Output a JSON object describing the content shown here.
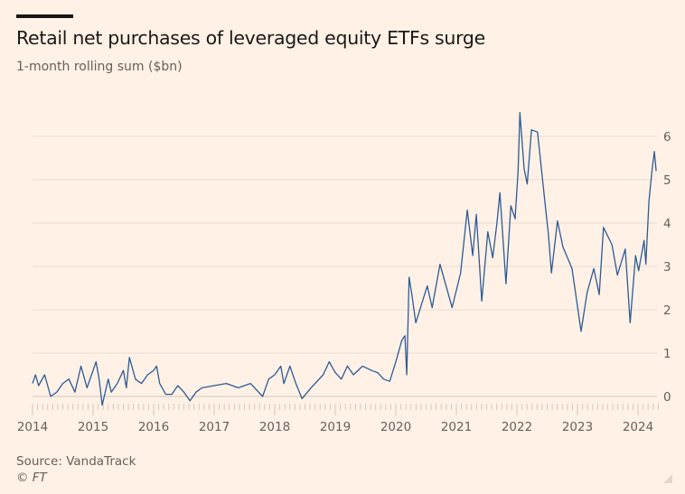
{
  "header": {
    "title": "Retail net purchases of leveraged equity ETFs surge",
    "subtitle": "1-month rolling sum ($bn)"
  },
  "footer": {
    "source": "Source: VandaTrack",
    "copyright": "© FT"
  },
  "colors": {
    "background": "#fff1e5",
    "line": "#2e5b97",
    "grid": "#e8dbd0",
    "text": "#66605c"
  },
  "chart_data": {
    "type": "line",
    "title": "Retail net purchases of leveraged equity ETFs surge",
    "subtitle": "1-month rolling sum ($bn)",
    "xlabel": "",
    "ylabel": "",
    "xlim": [
      2014,
      2024.4
    ],
    "ylim": [
      -0.3,
      6.6
    ],
    "grid": true,
    "y_axis_position": "right",
    "x_ticks": [
      "2014",
      "2015",
      "2016",
      "2017",
      "2018",
      "2019",
      "2020",
      "2021",
      "2022",
      "2023",
      "2024"
    ],
    "y_ticks": [
      "0",
      "1",
      "2",
      "3",
      "4",
      "5",
      "6"
    ],
    "series": [
      {
        "x": [
          2014.0,
          2014.05,
          2014.1,
          2014.2,
          2014.3,
          2014.4,
          2014.5,
          2014.6,
          2014.7,
          2014.8,
          2014.9,
          2015.0,
          2015.05,
          2015.1,
          2015.15,
          2015.25,
          2015.3,
          2015.4,
          2015.5,
          2015.55,
          2015.6,
          2015.7,
          2015.8,
          2015.9,
          2016.0,
          2016.05,
          2016.1,
          2016.2,
          2016.3,
          2016.4,
          2016.5,
          2016.6,
          2016.7,
          2016.8,
          2017.0,
          2017.2,
          2017.4,
          2017.6,
          2017.8,
          2017.9,
          2018.0,
          2018.1,
          2018.15,
          2018.25,
          2018.35,
          2018.45,
          2018.6,
          2018.8,
          2018.9,
          2019.0,
          2019.1,
          2019.2,
          2019.3,
          2019.45,
          2019.6,
          2019.7,
          2019.8,
          2019.9,
          2020.0,
          2020.1,
          2020.15,
          2020.18,
          2020.22,
          2020.26,
          2020.33,
          2020.52,
          2020.6,
          2020.73,
          2020.93,
          2021.07,
          2021.12,
          2021.18,
          2021.27,
          2021.33,
          2021.42,
          2021.52,
          2021.6,
          2021.67,
          2021.72,
          2021.82,
          2021.9,
          2021.97,
          2022.02,
          2022.05,
          2022.12,
          2022.17,
          2022.24,
          2022.34,
          2022.42,
          2022.52,
          2022.57,
          2022.67,
          2022.76,
          2022.91,
          2023.06,
          2023.16,
          2023.27,
          2023.36,
          2023.43,
          2023.57,
          2023.66,
          2023.79,
          2023.87,
          2023.96,
          2024.01,
          2024.1,
          2024.13,
          2024.18,
          2024.23,
          2024.27,
          2024.3
        ],
        "values": [
          0.3,
          0.5,
          0.25,
          0.5,
          0.0,
          0.1,
          0.3,
          0.4,
          0.1,
          0.7,
          0.2,
          0.6,
          0.8,
          0.4,
          -0.2,
          0.4,
          0.1,
          0.3,
          0.6,
          0.2,
          0.9,
          0.4,
          0.3,
          0.5,
          0.6,
          0.7,
          0.3,
          0.05,
          0.05,
          0.25,
          0.1,
          -0.1,
          0.1,
          0.2,
          0.25,
          0.3,
          0.2,
          0.3,
          0.0,
          0.4,
          0.5,
          0.7,
          0.3,
          0.7,
          0.3,
          -0.05,
          0.2,
          0.5,
          0.8,
          0.55,
          0.4,
          0.7,
          0.5,
          0.7,
          0.6,
          0.55,
          0.4,
          0.35,
          0.8,
          1.3,
          1.4,
          0.5,
          2.75,
          2.4,
          1.7,
          2.55,
          2.05,
          3.05,
          2.05,
          2.85,
          3.5,
          4.3,
          3.25,
          4.2,
          2.2,
          3.8,
          3.2,
          4.0,
          4.7,
          2.6,
          4.4,
          4.1,
          5.2,
          6.55,
          5.25,
          4.9,
          6.15,
          6.1,
          5.05,
          3.75,
          2.85,
          4.05,
          3.45,
          2.95,
          1.5,
          2.4,
          2.95,
          2.35,
          3.9,
          3.5,
          2.8,
          3.4,
          1.7,
          3.25,
          2.9,
          3.6,
          3.05,
          4.5,
          5.2,
          5.65,
          5.2
        ]
      }
    ]
  }
}
